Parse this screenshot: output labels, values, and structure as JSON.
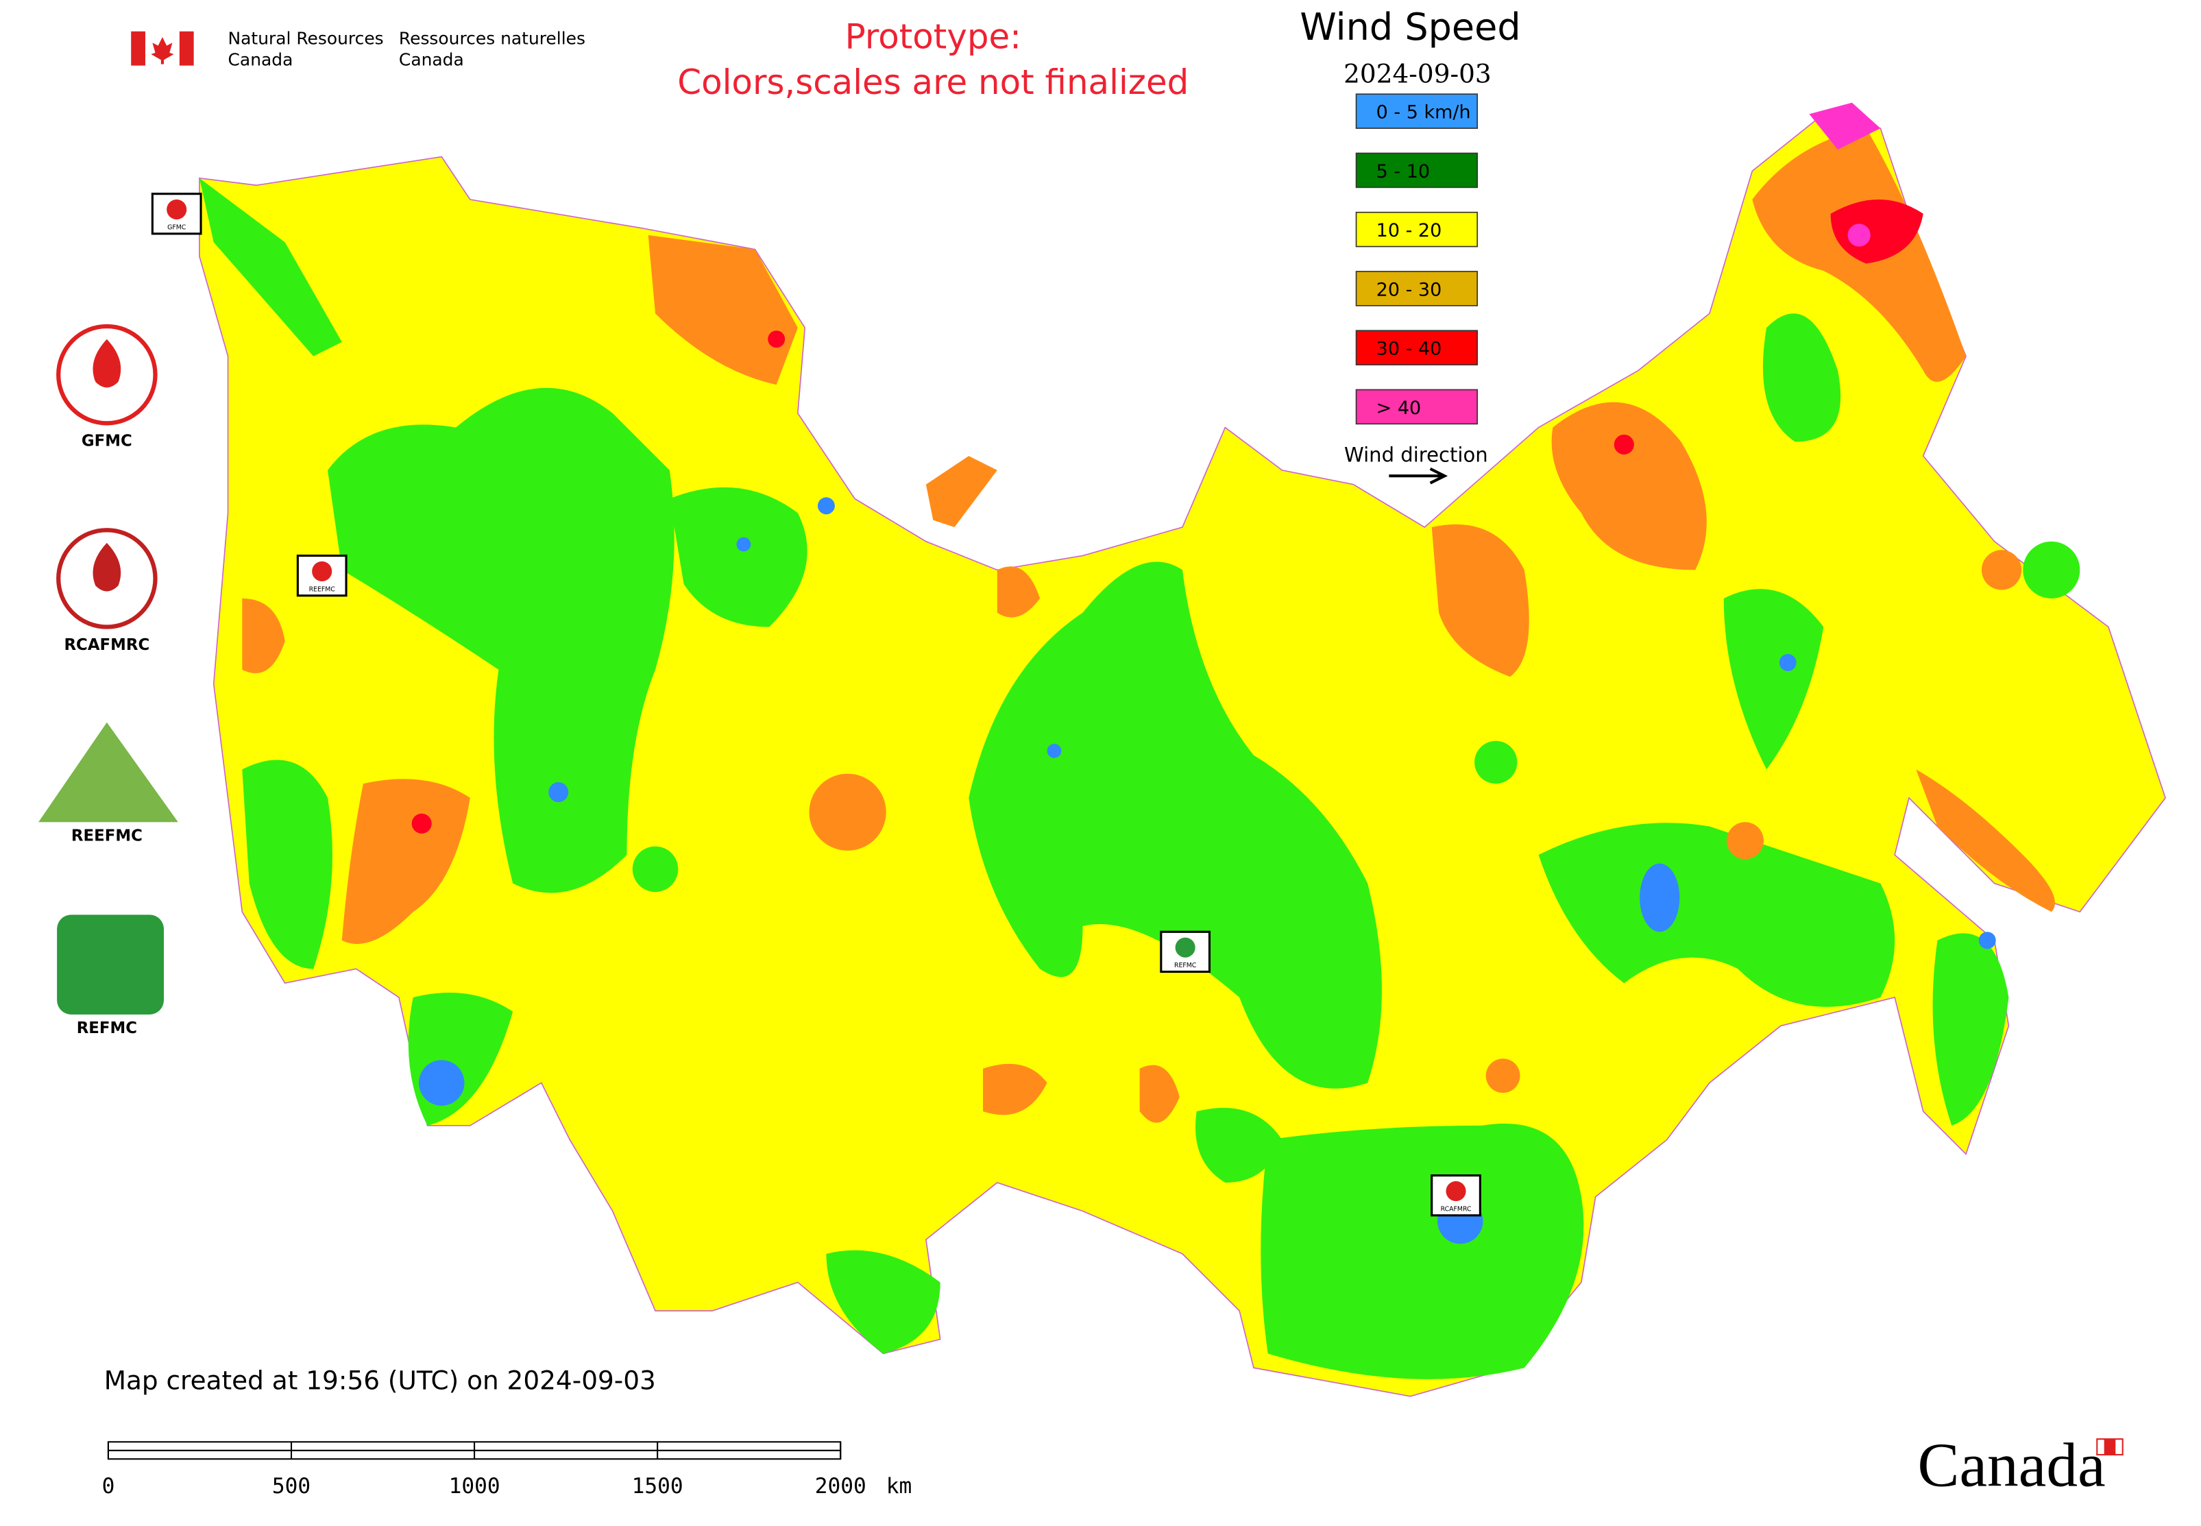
{
  "header": {
    "department_en": "Natural Resources",
    "department_en_2": "Canada",
    "department_fr": "Ressources naturelles",
    "department_fr_2": "Canada"
  },
  "notice": {
    "line1": "Prototype:",
    "line2": "Colors,scales are not finalized"
  },
  "legend": {
    "title": "Wind Speed",
    "date": "2024-09-03",
    "items": [
      {
        "label": "0 - 5 km/h",
        "color": "#3399ff"
      },
      {
        "label": "5 - 10",
        "color": "#008000"
      },
      {
        "label": "10 - 20",
        "color": "#ffff00"
      },
      {
        "label": "20 - 30",
        "color": "#e0b000"
      },
      {
        "label": "30 - 40",
        "color": "#ff0000"
      },
      {
        "label": "> 40",
        "color": "#ff33aa"
      }
    ],
    "wind_direction": "Wind direction"
  },
  "logos": [
    "GFMC",
    "RCAFMRC",
    "REEFMC",
    "REFMC"
  ],
  "map_markers": [
    "GFMC",
    "REEFMC",
    "REFMC",
    "RCAFMRC"
  ],
  "footer": {
    "created": "Map created at 19:56 (UTC) on 2024-09-03",
    "wordmark": "Canada"
  },
  "scale_bar": {
    "ticks": [
      0,
      500,
      1000,
      1500,
      2000
    ],
    "unit": "km"
  }
}
